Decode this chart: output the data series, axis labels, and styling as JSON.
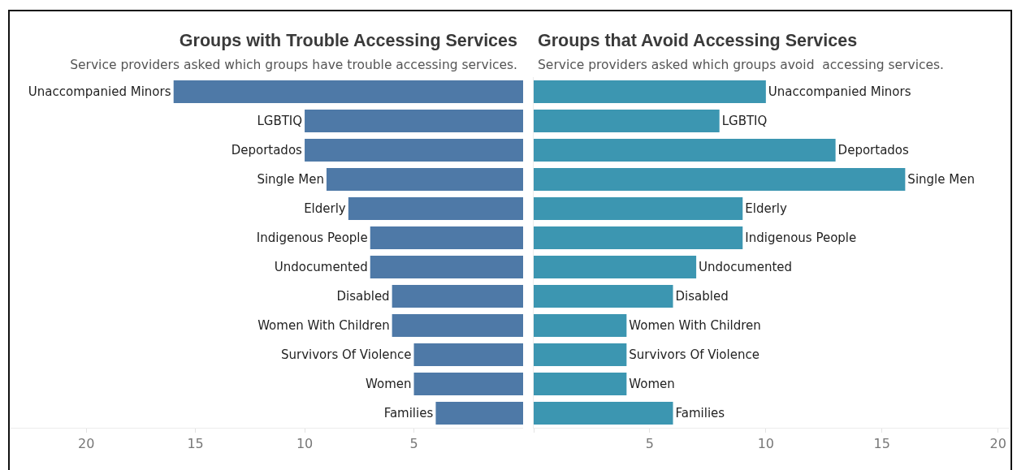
{
  "chart_data": [
    {
      "type": "bar",
      "orientation": "horizontal",
      "title": "Groups with Trouble Accessing Services",
      "subtitle": "Service providers asked which groups have trouble accessing services.",
      "categories": [
        "Unaccompanied Minors",
        "LGBTIQ",
        "Deportados",
        "Single Men",
        "Elderly",
        "Indigenous People",
        "Undocumented",
        "Disabled",
        "Women With Children",
        "Survivors Of Violence",
        "Women",
        "Families"
      ],
      "values": [
        16,
        10,
        10,
        9,
        8,
        7,
        7,
        6,
        6,
        5,
        5,
        4
      ],
      "color": "#4e79a7",
      "xlim": [
        23.5,
        0
      ],
      "xticks": [
        20,
        15,
        10,
        5
      ],
      "tick_labels": "x"
    },
    {
      "type": "bar",
      "orientation": "horizontal",
      "title": "Groups that Avoid Accessing Services",
      "subtitle": "Service providers asked which groups avoid  accessing services.",
      "categories": [
        "Unaccompanied Minors",
        "LGBTIQ",
        "Deportados",
        "Single Men",
        "Elderly",
        "Indigenous People",
        "Undocumented",
        "Disabled",
        "Women With Children",
        "Survivors Of Violence",
        "Women",
        "Families"
      ],
      "values": [
        10,
        8,
        13,
        16,
        9,
        9,
        7,
        6,
        4,
        4,
        4,
        6
      ],
      "color": "#3c96b1",
      "xlim": [
        0,
        20.5
      ],
      "xticks": [
        {
          "value": 0,
          "label": null
        },
        5,
        10,
        15,
        20
      ],
      "tick_labels": "x"
    }
  ]
}
